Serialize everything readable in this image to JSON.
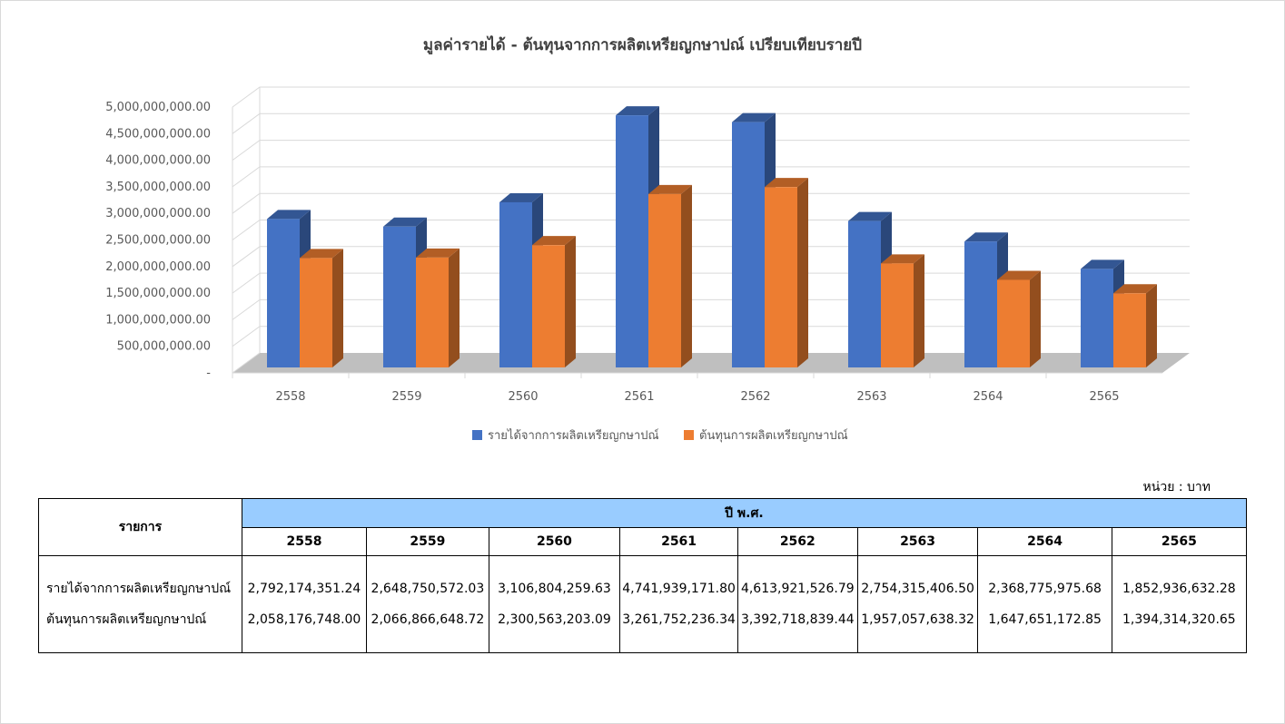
{
  "chart_data": {
    "type": "bar",
    "title": "มูลค่ารายได้ - ต้นทุนจากการผลิตเหรียญกษาปณ์ เปรียบเทียบรายปี",
    "categories": [
      "2558",
      "2559",
      "2560",
      "2561",
      "2562",
      "2563",
      "2564",
      "2565"
    ],
    "series": [
      {
        "name": "รายได้จากการผลิตเหรียญกษาปณ์",
        "color": "#4472c4",
        "values": [
          2792174351.24,
          2648750572.03,
          3106804259.63,
          4741939171.8,
          4613921526.79,
          2754315406.5,
          2368775975.68,
          1852936632.28
        ]
      },
      {
        "name": "ต้นทุนการผลิตเหรียญกษาปณ์",
        "color": "#ed7d31",
        "values": [
          2058176748.0,
          2066866648.72,
          2300563203.09,
          3261752236.34,
          3392718839.44,
          1957057638.32,
          1647651172.85,
          1394314320.65
        ]
      }
    ],
    "yticks": [
      "-",
      "500,000,000.00",
      "1,000,000,000.00",
      "1,500,000,000.00",
      "2,000,000,000.00",
      "2,500,000,000.00",
      "3,000,000,000.00",
      "3,500,000,000.00",
      "4,000,000,000.00",
      "4,500,000,000.00",
      "5,000,000,000.00"
    ],
    "ylim": [
      0,
      5000000000
    ],
    "grid": true,
    "legend": "bottom"
  },
  "table": {
    "unit": "หน่วย : บาท",
    "item_header": "รายการ",
    "year_header": "ปี พ.ศ.",
    "years": [
      "2558",
      "2559",
      "2560",
      "2561",
      "2562",
      "2563",
      "2564",
      "2565"
    ],
    "rows": [
      {
        "label": "รายได้จากการผลิตเหรียญกษาปณ์",
        "values": [
          "2,792,174,351.24",
          "2,648,750,572.03",
          "3,106,804,259.63",
          "4,741,939,171.80",
          "4,613,921,526.79",
          "2,754,315,406.50",
          "2,368,775,975.68",
          "1,852,936,632.28"
        ]
      },
      {
        "label": "ต้นทุนการผลิตเหรียญกษาปณ์",
        "values": [
          "2,058,176,748.00",
          "2,066,866,648.72",
          "2,300,563,203.09",
          "3,261,752,236.34",
          "3,392,718,839.44",
          "1,957,057,638.32",
          "1,647,651,172.85",
          "1,394,314,320.65"
        ]
      }
    ]
  }
}
